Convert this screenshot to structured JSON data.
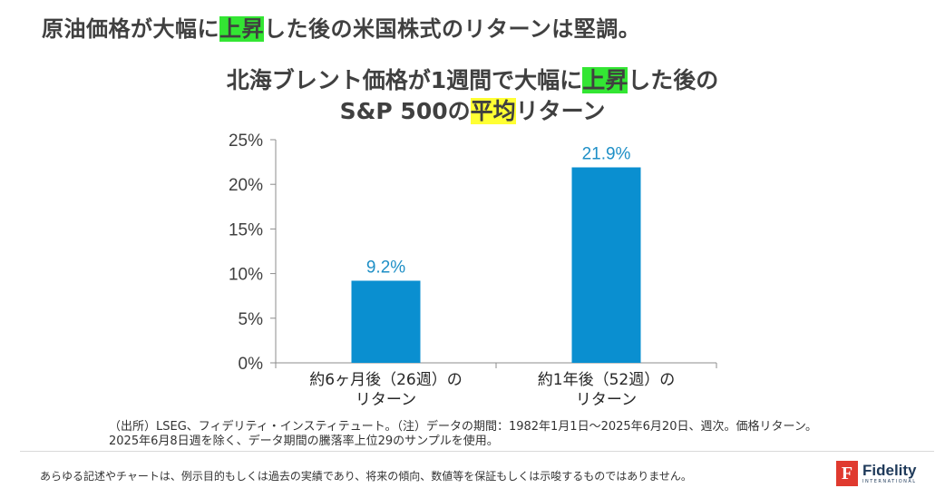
{
  "headline": {
    "part1": "原油価格が大幅に",
    "highlight": "上昇",
    "part2": "した後の米国株式のリターンは堅調。"
  },
  "chart_title": {
    "line1_part1": "北海ブレント価格が1週間で大幅に",
    "line1_highlight": "上昇",
    "line1_part2": "した後の",
    "line2_part1": "S&P 500の",
    "line2_highlight": "平均",
    "line2_part2": "リターン"
  },
  "chart_data": {
    "type": "bar",
    "categories": [
      [
        "約6ヶ月後（26週）の",
        "リターン"
      ],
      [
        "約1年後（52週）の",
        "リターン"
      ]
    ],
    "values": [
      9.2,
      21.9
    ],
    "value_labels": [
      "9.2%",
      "21.9%"
    ],
    "ylim": [
      0,
      25
    ],
    "yticks": [
      0,
      5,
      10,
      15,
      20,
      25
    ],
    "ytick_labels": [
      "0%",
      "5%",
      "10%",
      "15%",
      "20%",
      "25%"
    ],
    "bar_color": "#0a8fd0",
    "label_color": "#1e8fc6",
    "grid": false
  },
  "note": {
    "line1": "（出所）LSEG、フィデリティ・インスティテュート。（注）データの期間：1982年1月1日～2025年6月20日、週次。価格リターン。",
    "line2": "2025年6月8日週を除く、データ期間の騰落率上位29のサンプルを使用。"
  },
  "disclaimer": "あらゆる記述やチャートは、例示目的もしくは過去の実績であり、将来の傾向、数値等を保証もしくは示唆するものではありません。",
  "logo": {
    "mark": "F",
    "name": "Fidelity",
    "sub": "INTERNATIONAL"
  }
}
